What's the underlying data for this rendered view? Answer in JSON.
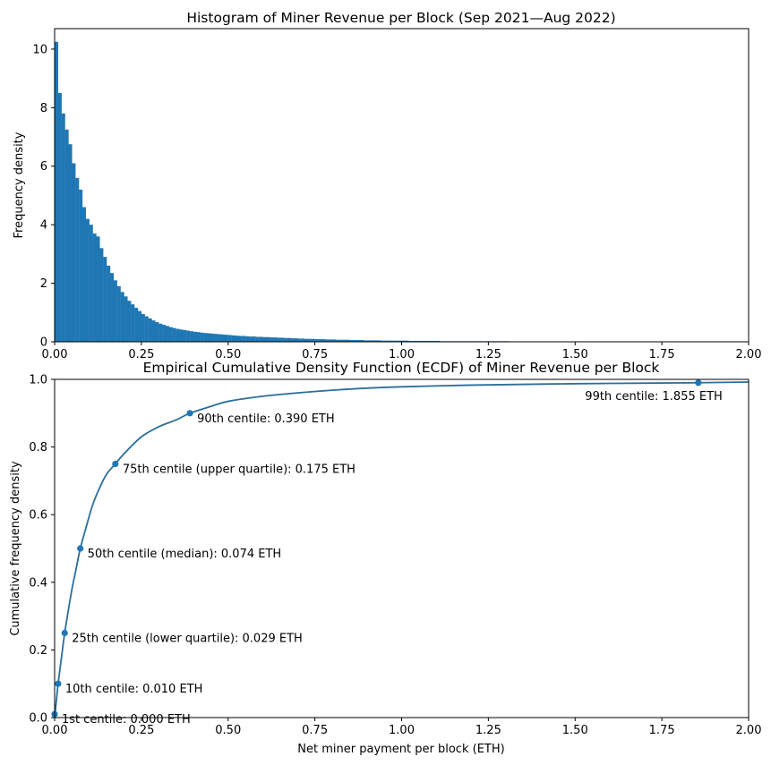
{
  "chart_data": [
    {
      "type": "bar",
      "title": "Histogram of Miner Revenue per Block (Sep 2021—Aug 2022)",
      "xlabel": "",
      "ylabel": "Frequency density",
      "xlim": [
        0,
        2.0
      ],
      "ylim": [
        0,
        10.7
      ],
      "bin_width": 0.01,
      "color": "#1f77b4",
      "x_ticks": [
        "0.00",
        "0.25",
        "0.50",
        "0.75",
        "1.00",
        "1.25",
        "1.50",
        "1.75",
        "2.00"
      ],
      "y_ticks": [
        "0",
        "2",
        "4",
        "6",
        "8",
        "10"
      ],
      "bins": [
        {
          "x": 0.0,
          "y": 10.25
        },
        {
          "x": 0.01,
          "y": 8.5
        },
        {
          "x": 0.02,
          "y": 7.8
        },
        {
          "x": 0.03,
          "y": 7.25
        },
        {
          "x": 0.04,
          "y": 6.75
        },
        {
          "x": 0.05,
          "y": 6.1
        },
        {
          "x": 0.06,
          "y": 5.6
        },
        {
          "x": 0.07,
          "y": 5.2
        },
        {
          "x": 0.08,
          "y": 4.6
        },
        {
          "x": 0.09,
          "y": 4.2
        },
        {
          "x": 0.1,
          "y": 4.0
        },
        {
          "x": 0.11,
          "y": 3.7
        },
        {
          "x": 0.12,
          "y": 3.6
        },
        {
          "x": 0.13,
          "y": 3.2
        },
        {
          "x": 0.14,
          "y": 2.9
        },
        {
          "x": 0.15,
          "y": 2.6
        },
        {
          "x": 0.16,
          "y": 2.35
        },
        {
          "x": 0.17,
          "y": 2.1
        },
        {
          "x": 0.18,
          "y": 1.9
        },
        {
          "x": 0.19,
          "y": 1.7
        },
        {
          "x": 0.2,
          "y": 1.55
        },
        {
          "x": 0.21,
          "y": 1.4
        },
        {
          "x": 0.22,
          "y": 1.28
        },
        {
          "x": 0.23,
          "y": 1.16
        },
        {
          "x": 0.24,
          "y": 1.05
        },
        {
          "x": 0.25,
          "y": 0.95
        },
        {
          "x": 0.26,
          "y": 0.87
        },
        {
          "x": 0.27,
          "y": 0.8
        },
        {
          "x": 0.28,
          "y": 0.73
        },
        {
          "x": 0.29,
          "y": 0.67
        },
        {
          "x": 0.3,
          "y": 0.62
        },
        {
          "x": 0.31,
          "y": 0.58
        },
        {
          "x": 0.32,
          "y": 0.54
        },
        {
          "x": 0.33,
          "y": 0.5
        },
        {
          "x": 0.34,
          "y": 0.47
        },
        {
          "x": 0.35,
          "y": 0.44
        },
        {
          "x": 0.36,
          "y": 0.42
        },
        {
          "x": 0.37,
          "y": 0.4
        },
        {
          "x": 0.38,
          "y": 0.38
        },
        {
          "x": 0.39,
          "y": 0.36
        },
        {
          "x": 0.4,
          "y": 0.34
        },
        {
          "x": 0.41,
          "y": 0.33
        },
        {
          "x": 0.42,
          "y": 0.31
        },
        {
          "x": 0.43,
          "y": 0.3
        },
        {
          "x": 0.44,
          "y": 0.29
        },
        {
          "x": 0.45,
          "y": 0.28
        },
        {
          "x": 0.46,
          "y": 0.27
        },
        {
          "x": 0.47,
          "y": 0.26
        },
        {
          "x": 0.48,
          "y": 0.25
        },
        {
          "x": 0.49,
          "y": 0.24
        },
        {
          "x": 0.5,
          "y": 0.23
        },
        {
          "x": 0.51,
          "y": 0.22
        },
        {
          "x": 0.52,
          "y": 0.21
        },
        {
          "x": 0.53,
          "y": 0.2
        },
        {
          "x": 0.54,
          "y": 0.2
        },
        {
          "x": 0.55,
          "y": 0.19
        },
        {
          "x": 0.56,
          "y": 0.18
        },
        {
          "x": 0.57,
          "y": 0.18
        },
        {
          "x": 0.58,
          "y": 0.17
        },
        {
          "x": 0.59,
          "y": 0.17
        },
        {
          "x": 0.6,
          "y": 0.16
        },
        {
          "x": 0.61,
          "y": 0.16
        },
        {
          "x": 0.62,
          "y": 0.15
        },
        {
          "x": 0.63,
          "y": 0.15
        },
        {
          "x": 0.64,
          "y": 0.14
        },
        {
          "x": 0.65,
          "y": 0.14
        },
        {
          "x": 0.66,
          "y": 0.13
        },
        {
          "x": 0.67,
          "y": 0.13
        },
        {
          "x": 0.68,
          "y": 0.12
        },
        {
          "x": 0.69,
          "y": 0.12
        },
        {
          "x": 0.7,
          "y": 0.11
        },
        {
          "x": 0.71,
          "y": 0.11
        },
        {
          "x": 0.72,
          "y": 0.1
        },
        {
          "x": 0.73,
          "y": 0.1
        },
        {
          "x": 0.74,
          "y": 0.1
        },
        {
          "x": 0.75,
          "y": 0.09
        },
        {
          "x": 0.76,
          "y": 0.09
        },
        {
          "x": 0.77,
          "y": 0.09
        },
        {
          "x": 0.78,
          "y": 0.08
        },
        {
          "x": 0.79,
          "y": 0.08
        },
        {
          "x": 0.8,
          "y": 0.08
        },
        {
          "x": 0.81,
          "y": 0.07
        },
        {
          "x": 0.82,
          "y": 0.07
        },
        {
          "x": 0.83,
          "y": 0.07
        },
        {
          "x": 0.84,
          "y": 0.07
        },
        {
          "x": 0.85,
          "y": 0.06
        },
        {
          "x": 0.86,
          "y": 0.06
        },
        {
          "x": 0.87,
          "y": 0.06
        },
        {
          "x": 0.88,
          "y": 0.06
        },
        {
          "x": 0.89,
          "y": 0.05
        },
        {
          "x": 0.9,
          "y": 0.05
        },
        {
          "x": 0.91,
          "y": 0.05
        },
        {
          "x": 0.92,
          "y": 0.05
        },
        {
          "x": 0.93,
          "y": 0.05
        },
        {
          "x": 0.94,
          "y": 0.04
        },
        {
          "x": 0.95,
          "y": 0.04
        },
        {
          "x": 0.96,
          "y": 0.04
        },
        {
          "x": 0.97,
          "y": 0.04
        },
        {
          "x": 0.98,
          "y": 0.04
        },
        {
          "x": 0.99,
          "y": 0.04
        },
        {
          "x": 1.0,
          "y": 0.04
        },
        {
          "x": 1.01,
          "y": 0.04
        },
        {
          "x": 1.02,
          "y": 0.03
        },
        {
          "x": 1.03,
          "y": 0.03
        },
        {
          "x": 1.04,
          "y": 0.03
        },
        {
          "x": 1.05,
          "y": 0.03
        },
        {
          "x": 1.06,
          "y": 0.03
        },
        {
          "x": 1.07,
          "y": 0.03
        },
        {
          "x": 1.08,
          "y": 0.03
        },
        {
          "x": 1.09,
          "y": 0.03
        },
        {
          "x": 1.1,
          "y": 0.03
        },
        {
          "x": 1.11,
          "y": 0.02
        },
        {
          "x": 1.12,
          "y": 0.02
        },
        {
          "x": 1.13,
          "y": 0.02
        },
        {
          "x": 1.14,
          "y": 0.02
        },
        {
          "x": 1.15,
          "y": 0.02
        },
        {
          "x": 1.16,
          "y": 0.02
        },
        {
          "x": 1.17,
          "y": 0.02
        },
        {
          "x": 1.18,
          "y": 0.02
        },
        {
          "x": 1.19,
          "y": 0.02
        },
        {
          "x": 1.2,
          "y": 0.02
        },
        {
          "x": 1.21,
          "y": 0.02
        },
        {
          "x": 1.22,
          "y": 0.02
        },
        {
          "x": 1.23,
          "y": 0.02
        },
        {
          "x": 1.24,
          "y": 0.02
        },
        {
          "x": 1.25,
          "y": 0.02
        },
        {
          "x": 1.26,
          "y": 0.02
        },
        {
          "x": 1.27,
          "y": 0.02
        },
        {
          "x": 1.28,
          "y": 0.02
        },
        {
          "x": 1.29,
          "y": 0.02
        },
        {
          "x": 1.3,
          "y": 0.02
        },
        {
          "x": 1.31,
          "y": 0.015
        },
        {
          "x": 1.32,
          "y": 0.015
        },
        {
          "x": 1.33,
          "y": 0.015
        },
        {
          "x": 1.34,
          "y": 0.015
        },
        {
          "x": 1.35,
          "y": 0.015
        },
        {
          "x": 1.36,
          "y": 0.015
        },
        {
          "x": 1.37,
          "y": 0.015
        },
        {
          "x": 1.38,
          "y": 0.015
        },
        {
          "x": 1.39,
          "y": 0.015
        },
        {
          "x": 1.4,
          "y": 0.015
        },
        {
          "x": 1.41,
          "y": 0.015
        },
        {
          "x": 1.42,
          "y": 0.015
        },
        {
          "x": 1.43,
          "y": 0.015
        },
        {
          "x": 1.44,
          "y": 0.015
        },
        {
          "x": 1.45,
          "y": 0.015
        },
        {
          "x": 1.46,
          "y": 0.015
        },
        {
          "x": 1.47,
          "y": 0.015
        },
        {
          "x": 1.48,
          "y": 0.015
        },
        {
          "x": 1.49,
          "y": 0.015
        },
        {
          "x": 1.5,
          "y": 0.015
        },
        {
          "x": 1.51,
          "y": 0.012
        },
        {
          "x": 1.52,
          "y": 0.012
        },
        {
          "x": 1.53,
          "y": 0.012
        },
        {
          "x": 1.54,
          "y": 0.012
        },
        {
          "x": 1.55,
          "y": 0.012
        },
        {
          "x": 1.56,
          "y": 0.012
        },
        {
          "x": 1.57,
          "y": 0.012
        },
        {
          "x": 1.58,
          "y": 0.012
        },
        {
          "x": 1.59,
          "y": 0.012
        },
        {
          "x": 1.6,
          "y": 0.012
        },
        {
          "x": 1.61,
          "y": 0.012
        },
        {
          "x": 1.62,
          "y": 0.012
        },
        {
          "x": 1.63,
          "y": 0.012
        },
        {
          "x": 1.64,
          "y": 0.012
        },
        {
          "x": 1.65,
          "y": 0.012
        },
        {
          "x": 1.66,
          "y": 0.012
        },
        {
          "x": 1.67,
          "y": 0.012
        },
        {
          "x": 1.68,
          "y": 0.012
        },
        {
          "x": 1.69,
          "y": 0.012
        },
        {
          "x": 1.7,
          "y": 0.012
        },
        {
          "x": 1.71,
          "y": 0.01
        },
        {
          "x": 1.72,
          "y": 0.01
        },
        {
          "x": 1.73,
          "y": 0.01
        },
        {
          "x": 1.74,
          "y": 0.01
        },
        {
          "x": 1.75,
          "y": 0.01
        },
        {
          "x": 1.76,
          "y": 0.01
        },
        {
          "x": 1.77,
          "y": 0.01
        },
        {
          "x": 1.78,
          "y": 0.01
        },
        {
          "x": 1.79,
          "y": 0.01
        },
        {
          "x": 1.8,
          "y": 0.01
        },
        {
          "x": 1.81,
          "y": 0.01
        },
        {
          "x": 1.82,
          "y": 0.01
        },
        {
          "x": 1.83,
          "y": 0.01
        },
        {
          "x": 1.84,
          "y": 0.01
        },
        {
          "x": 1.85,
          "y": 0.01
        },
        {
          "x": 1.86,
          "y": 0.01
        },
        {
          "x": 1.87,
          "y": 0.01
        },
        {
          "x": 1.88,
          "y": 0.01
        },
        {
          "x": 1.89,
          "y": 0.01
        },
        {
          "x": 1.9,
          "y": 0.01
        },
        {
          "x": 1.91,
          "y": 0.01
        },
        {
          "x": 1.92,
          "y": 0.01
        },
        {
          "x": 1.93,
          "y": 0.01
        },
        {
          "x": 1.94,
          "y": 0.005
        },
        {
          "x": 1.95,
          "y": 0.01
        },
        {
          "x": 1.96,
          "y": 0.01
        },
        {
          "x": 1.97,
          "y": 0.005
        },
        {
          "x": 1.98,
          "y": 0.005
        },
        {
          "x": 1.99,
          "y": 0.005
        }
      ]
    },
    {
      "type": "line",
      "title": "Empirical Cumulative Density Function (ECDF) of Miner Revenue per Block",
      "xlabel": "Net miner payment per block (ETH)",
      "ylabel": "Cumulative frequency density",
      "xlim": [
        0,
        2.0
      ],
      "ylim": [
        0,
        1.0
      ],
      "color": "#2a6f9c",
      "marker_color": "#1f77b4",
      "x_ticks": [
        "0.00",
        "0.25",
        "0.50",
        "0.75",
        "1.00",
        "1.25",
        "1.50",
        "1.75",
        "2.00"
      ],
      "y_ticks": [
        "0.0",
        "0.2",
        "0.4",
        "0.6",
        "0.8",
        "1.0"
      ],
      "curve": [
        [
          0.0,
          0.0
        ],
        [
          0.002,
          0.02
        ],
        [
          0.005,
          0.05
        ],
        [
          0.01,
          0.1
        ],
        [
          0.015,
          0.14
        ],
        [
          0.02,
          0.18
        ],
        [
          0.029,
          0.25
        ],
        [
          0.04,
          0.32
        ],
        [
          0.05,
          0.38
        ],
        [
          0.06,
          0.43
        ],
        [
          0.074,
          0.5
        ],
        [
          0.09,
          0.56
        ],
        [
          0.11,
          0.63
        ],
        [
          0.13,
          0.68
        ],
        [
          0.15,
          0.72
        ],
        [
          0.175,
          0.75
        ],
        [
          0.2,
          0.78
        ],
        [
          0.25,
          0.83
        ],
        [
          0.3,
          0.86
        ],
        [
          0.35,
          0.88
        ],
        [
          0.39,
          0.9
        ],
        [
          0.45,
          0.92
        ],
        [
          0.5,
          0.935
        ],
        [
          0.6,
          0.95
        ],
        [
          0.7,
          0.96
        ],
        [
          0.8,
          0.968
        ],
        [
          0.9,
          0.974
        ],
        [
          1.0,
          0.978
        ],
        [
          1.2,
          0.983
        ],
        [
          1.4,
          0.986
        ],
        [
          1.6,
          0.988
        ],
        [
          1.855,
          0.99
        ],
        [
          2.0,
          0.992
        ]
      ],
      "points": [
        {
          "x": 0.0,
          "y": 0.01,
          "label": "1st centile: 0.000 ETH",
          "anchor": "right"
        },
        {
          "x": 0.01,
          "y": 0.1,
          "label": "10th centile: 0.010 ETH",
          "anchor": "right"
        },
        {
          "x": 0.029,
          "y": 0.25,
          "label": "25th centile (lower quartile): 0.029 ETH",
          "anchor": "right"
        },
        {
          "x": 0.074,
          "y": 0.5,
          "label": "50th centile (median): 0.074 ETH",
          "anchor": "right"
        },
        {
          "x": 0.175,
          "y": 0.75,
          "label": "75th centile (upper quartile): 0.175 ETH",
          "anchor": "right"
        },
        {
          "x": 0.39,
          "y": 0.9,
          "label": "90th centile: 0.390 ETH",
          "anchor": "right"
        },
        {
          "x": 1.855,
          "y": 0.99,
          "label": "99th centile: 1.855 ETH",
          "anchor": "left"
        }
      ]
    }
  ]
}
